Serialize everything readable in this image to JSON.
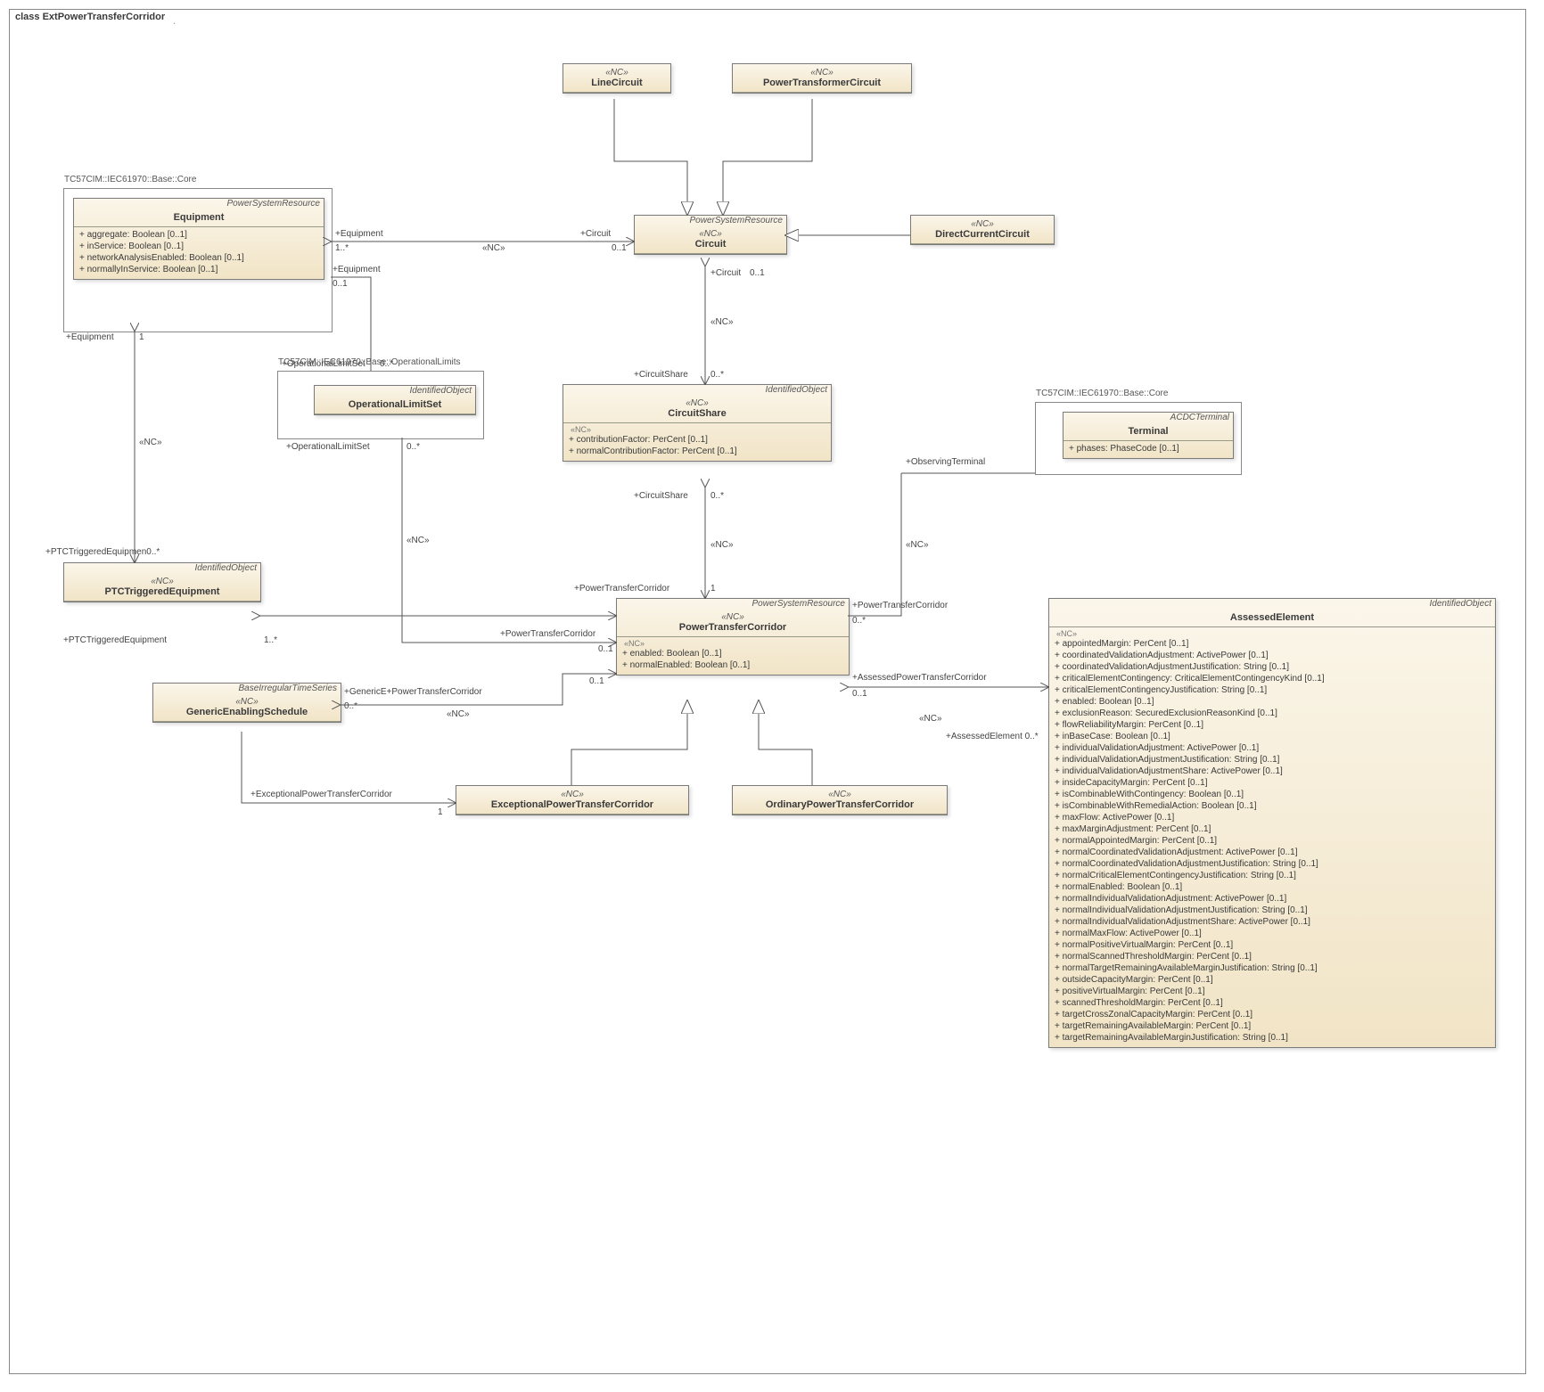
{
  "diagram_title": "class ExtPowerTransferCorridor",
  "colors": {
    "box_bg_top": "#fbf6ea",
    "box_bg_bottom": "#f1e4c6",
    "border": "#7a7a7a",
    "line": "#555555"
  },
  "classes": {
    "LineCircuit": {
      "stereotype": "«NC»",
      "name": "LineCircuit"
    },
    "PowerTransformerCircuit": {
      "stereotype": "«NC»",
      "name": "PowerTransformerCircuit"
    },
    "DirectCurrentCircuit": {
      "stereotype": "«NC»",
      "name": "DirectCurrentCircuit"
    },
    "Circuit": {
      "parent": "PowerSystemResource",
      "stereotype": "«NC»",
      "name": "Circuit"
    },
    "Equipment": {
      "package": "TC57CIM::IEC61970::Base::Core",
      "parent": "PowerSystemResource",
      "name": "Equipment",
      "attrs": [
        "+   aggregate: Boolean [0..1]",
        "+   inService: Boolean [0..1]",
        "+   networkAnalysisEnabled: Boolean [0..1]",
        "+   normallyInService: Boolean [0..1]"
      ]
    },
    "OperationalLimitSet": {
      "package": "TC57CIM::IEC61970::Base::OperationalLimits",
      "parent": "IdentifiedObject",
      "name": "OperationalLimitSet"
    },
    "CircuitShare": {
      "parent": "IdentifiedObject",
      "stereotype": "«NC»",
      "name": "CircuitShare",
      "stereo_section": "«NC»",
      "attrs": [
        "+   contributionFactor: PerCent [0..1]",
        "+   normalContributionFactor: PerCent [0..1]"
      ]
    },
    "Terminal": {
      "package": "TC57CIM::IEC61970::Base::Core",
      "parent": "ACDCTerminal",
      "name": "Terminal",
      "attrs": [
        "+   phases: PhaseCode [0..1]"
      ]
    },
    "PTCTriggeredEquipment": {
      "parent": "IdentifiedObject",
      "stereotype": "«NC»",
      "name": "PTCTriggeredEquipment"
    },
    "GenericEnablingSchedule": {
      "parent": "BaseIrregularTimeSeries",
      "stereotype": "«NC»",
      "name": "GenericEnablingSchedule"
    },
    "PowerTransferCorridor": {
      "parent": "PowerSystemResource",
      "stereotype": "«NC»",
      "name": "PowerTransferCorridor",
      "stereo_section": "«NC»",
      "attrs": [
        "+   enabled: Boolean [0..1]",
        "+   normalEnabled: Boolean [0..1]"
      ]
    },
    "ExceptionalPowerTransferCorridor": {
      "stereotype": "«NC»",
      "name": "ExceptionalPowerTransferCorridor"
    },
    "OrdinaryPowerTransferCorridor": {
      "stereotype": "«NC»",
      "name": "OrdinaryPowerTransferCorridor"
    },
    "AssessedElement": {
      "parent": "IdentifiedObject",
      "name": "AssessedElement",
      "stereo_section": "«NC»",
      "attrs": [
        "+   appointedMargin: PerCent [0..1]",
        "+   coordinatedValidationAdjustment: ActivePower [0..1]",
        "+   coordinatedValidationAdjustmentJustification: String [0..1]",
        "+   criticalElementContingency: CriticalElementContingencyKind [0..1]",
        "+   criticalElementContingencyJustification: String [0..1]",
        "+   enabled: Boolean [0..1]",
        "+   exclusionReason: SecuredExclusionReasonKind [0..1]",
        "+   flowReliabilityMargin: PerCent [0..1]",
        "+   inBaseCase: Boolean [0..1]",
        "+   individualValidationAdjustment: ActivePower [0..1]",
        "+   individualValidationAdjustmentJustification: String [0..1]",
        "+   individualValidationAdjustmentShare: ActivePower [0..1]",
        "+   insideCapacityMargin: PerCent [0..1]",
        "+   isCombinableWithContingency: Boolean [0..1]",
        "+   isCombinableWithRemedialAction: Boolean [0..1]",
        "+   maxFlow: ActivePower [0..1]",
        "+   maxMarginAdjustment: PerCent [0..1]",
        "+   normalAppointedMargin: PerCent [0..1]",
        "+   normalCoordinatedValidationAdjustment: ActivePower [0..1]",
        "+   normalCoordinatedValidationAdjustmentJustification: String [0..1]",
        "+   normalCriticalElementContingencyJustification: String [0..1]",
        "+   normalEnabled: Boolean [0..1]",
        "+   normalIndividualValidationAdjustment: ActivePower [0..1]",
        "+   normalIndividualValidationAdjustmentJustification: String [0..1]",
        "+   normalIndividualValidationAdjustmentShare: ActivePower [0..1]",
        "+   normalMaxFlow: ActivePower [0..1]",
        "+   normalPositiveVirtualMargin: PerCent [0..1]",
        "+   normalScannedThresholdMargin: PerCent [0..1]",
        "+   normalTargetRemainingAvailableMarginJustification: String [0..1]",
        "+   outsideCapacityMargin: PerCent [0..1]",
        "+   positiveVirtualMargin: PerCent [0..1]",
        "+   scannedThresholdMargin: PerCent [0..1]",
        "+   targetCrossZonalCapacityMargin: PerCent [0..1]",
        "+   targetRemainingAvailableMargin: PerCent [0..1]",
        "+   targetRemainingAvailableMarginJustification: String [0..1]"
      ]
    }
  },
  "labels": {
    "eq_equipment": "+Equipment",
    "eq_1star": "1..*",
    "nc": "«NC»",
    "circuit_role": "+Circuit",
    "m01": "0..1",
    "m0star": "0..*",
    "m1": "1",
    "m1star": "1..*",
    "equipment2": "+Equipment",
    "operationalLimitSet": "+OperationalLimitSet",
    "circuitShare": "+CircuitShare",
    "ptc": "+PowerTransferCorridor",
    "observingTerminal": "+ObservingTerminal",
    "ptcTriggered": "+PTCTriggeredEquipment",
    "ptcTriggered0": "+PTCTriggeredEquipmen0..*",
    "genericE": "+GenericE+PowerTransferCorridor",
    "exceptionalPTC": "+ExceptionalPowerTransferCorridor",
    "assessedPTC": "+AssessedPowerTransferCorridor",
    "assessedElement": "+AssessedElement  0..*"
  }
}
